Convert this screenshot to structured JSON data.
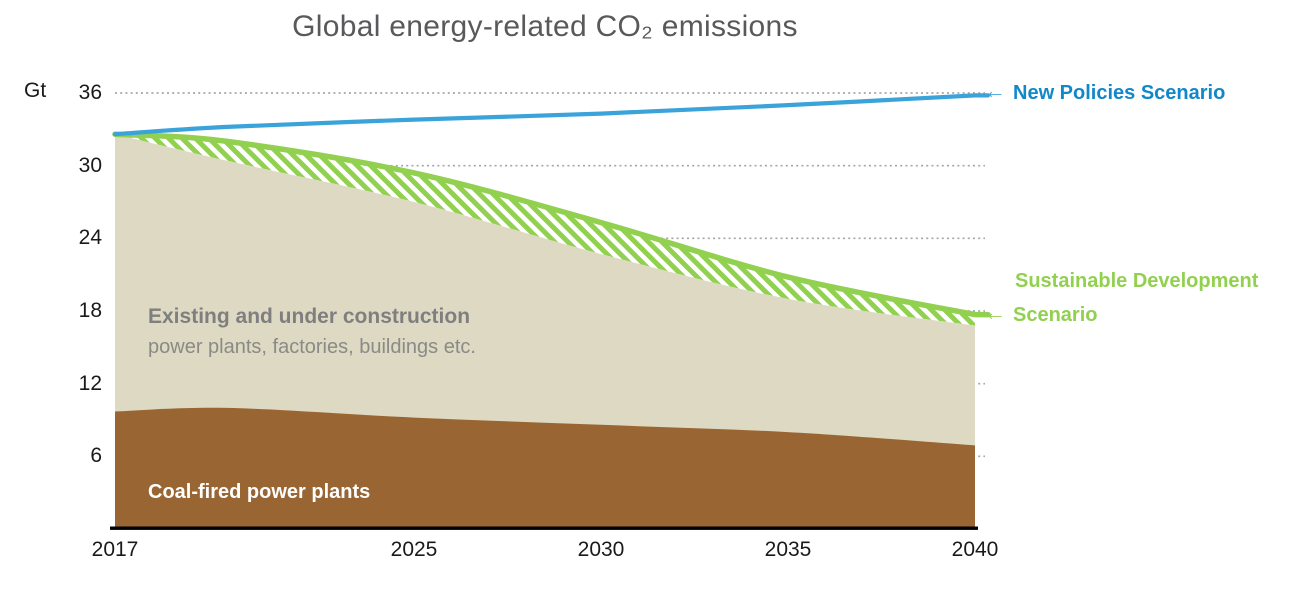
{
  "title": {
    "text": "Global energy-related CO₂ emissions"
  },
  "axes": {
    "unit_label": "Gt",
    "y_ticks": [
      36,
      30,
      24,
      18,
      12,
      6
    ],
    "x_ticks": [
      2017,
      2025,
      2030,
      2035,
      2040
    ]
  },
  "labels": {
    "existing_bold": "Existing and under construction",
    "existing_sub": "power plants, factories, buildings etc.",
    "coal": "Coal-fired power plants"
  },
  "annotations": {
    "nps": {
      "arrow": "←",
      "arrow_color": "#41a8e0",
      "label": "New Policies Scenario",
      "color": "#1287c9"
    },
    "sds": {
      "arrow": "←",
      "arrow_color": "#92d050",
      "label_line1": "Sustainable Development",
      "label_line2": "Scenario",
      "color": "#92d050"
    }
  },
  "colors": {
    "background": "#ffffff",
    "title_text": "#58595b",
    "tick_text": "#1a1a1a",
    "gridline": "#a6a6a6",
    "axis_line": "#000000",
    "nps_line": "#3aa3da",
    "sds_line": "#92d050",
    "existing_fill": "#ddd9c3",
    "coal_fill": "#996633",
    "hatch_stripe": "#92d050",
    "hatch_background": "#ffffff"
  },
  "chart_data": {
    "type": "area",
    "title": "Global energy-related CO₂ emissions",
    "ylabel": "Gt",
    "xlim": [
      2017,
      2040
    ],
    "ylim": [
      0,
      36
    ],
    "grid": "dotted horizontal",
    "x": [
      2017,
      2020,
      2025,
      2030,
      2035,
      2040
    ],
    "series": [
      {
        "name": "New Policies Scenario",
        "role": "nps-line",
        "type": "line",
        "color": "#3aa3da",
        "values": [
          32.6,
          33.2,
          33.8,
          34.3,
          35.0,
          35.8
        ]
      },
      {
        "name": "Sustainable Development Scenario",
        "role": "sds-line",
        "type": "line",
        "color": "#92d050",
        "values": [
          32.6,
          32.0,
          29.4,
          25.3,
          20.8,
          17.7
        ]
      },
      {
        "name": "Existing and under construction power plants, factories, buildings etc.",
        "role": "existing-area",
        "type": "area",
        "color": "#ddd9c3",
        "values": [
          32.6,
          30.4,
          27.0,
          22.7,
          19.0,
          16.8
        ]
      },
      {
        "name": "Coal-fired power plants",
        "role": "coal-area",
        "type": "area",
        "color": "#996633",
        "values": [
          9.7,
          10.0,
          9.2,
          8.6,
          8.0,
          6.9
        ]
      },
      {
        "name": "Gap between Sustainable Development Scenario and existing infrastructure",
        "role": "hatch-band",
        "type": "band",
        "between": [
          "Sustainable Development Scenario",
          "Existing and under construction power plants, factories, buildings etc."
        ]
      }
    ]
  }
}
